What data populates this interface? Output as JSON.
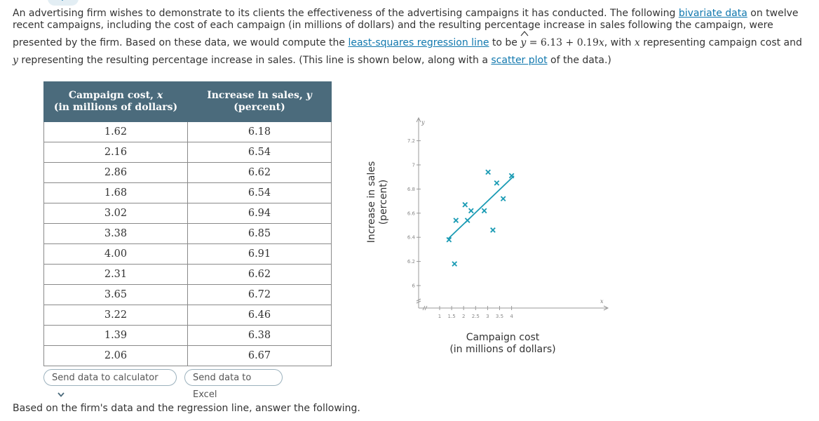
{
  "intro": {
    "line1_part1": "An advertising firm wishes to demonstrate to its clients the effectiveness of the advertising campaigns it has conducted. The following ",
    "link_bivariate": "bivariate data",
    "line1_part2": " on twelve",
    "line2": "recent campaigns, including the cost of each campaign (in millions of dollars) and the resulting percentage increase in sales following the campaign, were",
    "line3_part1": "presented by the firm. Based on these data, we would compute the ",
    "link_regression": "least-squares regression line",
    "line3_part2": " to be ",
    "eq_y": "y",
    "eq_equals": " = 6.13 + 0.19",
    "eq_x": "x",
    "line3_part3": ", with ",
    "x_var": "x",
    "line3_part4": " representing campaign cost and",
    "y_var": "y",
    "line4_part1": " representing the resulting percentage increase in sales. (This line is shown below, along with a ",
    "link_scatter": "scatter plot",
    "line4_part2": " of the data.)"
  },
  "table": {
    "col1_header_line1": "Campaign cost, ",
    "col1_header_var": "x",
    "col1_header_line2": "(in millions of dollars)",
    "col2_header_line1": "Increase in sales, ",
    "col2_header_var": "y",
    "col2_header_line2": "(percent)",
    "rows": [
      {
        "x": "1.62",
        "y": "6.18"
      },
      {
        "x": "2.16",
        "y": "6.54"
      },
      {
        "x": "2.86",
        "y": "6.62"
      },
      {
        "x": "1.68",
        "y": "6.54"
      },
      {
        "x": "3.02",
        "y": "6.94"
      },
      {
        "x": "3.38",
        "y": "6.85"
      },
      {
        "x": "4.00",
        "y": "6.91"
      },
      {
        "x": "2.31",
        "y": "6.62"
      },
      {
        "x": "3.65",
        "y": "6.72"
      },
      {
        "x": "3.22",
        "y": "6.46"
      },
      {
        "x": "1.39",
        "y": "6.38"
      },
      {
        "x": "2.06",
        "y": "6.67"
      }
    ]
  },
  "buttons": {
    "send_calculator": "Send data to calculator",
    "send_excel": "Send data to Excel"
  },
  "chart_data": {
    "type": "scatter",
    "xlabel_line1": "Campaign cost",
    "xlabel_line2": "(in millions of dollars)",
    "ylabel_line1": "Increase in sales",
    "ylabel_line2": "(percent)",
    "x_axis_var": "x",
    "y_axis_var": "y",
    "xlim": [
      0.7,
      4.5
    ],
    "ylim": [
      5.8,
      7.35
    ],
    "x_ticks": [
      1,
      1.5,
      2,
      2.5,
      3,
      3.5,
      4
    ],
    "x_tick_labels": [
      "1",
      "1.5",
      "2",
      "2.5",
      "3",
      "3.5",
      "4"
    ],
    "y_ticks": [
      6,
      6.2,
      6.4,
      6.6,
      6.8,
      7,
      7.2
    ],
    "y_tick_labels": [
      "6",
      "6.2",
      "6.4",
      "6.6",
      "6.8",
      "7",
      "7.2"
    ],
    "points": [
      {
        "x": 1.62,
        "y": 6.18
      },
      {
        "x": 2.16,
        "y": 6.54
      },
      {
        "x": 2.86,
        "y": 6.62
      },
      {
        "x": 1.68,
        "y": 6.54
      },
      {
        "x": 3.02,
        "y": 6.94
      },
      {
        "x": 3.38,
        "y": 6.85
      },
      {
        "x": 4.0,
        "y": 6.91
      },
      {
        "x": 2.31,
        "y": 6.62
      },
      {
        "x": 3.65,
        "y": 6.72
      },
      {
        "x": 3.22,
        "y": 6.46
      },
      {
        "x": 1.39,
        "y": 6.38
      },
      {
        "x": 2.06,
        "y": 6.67
      }
    ],
    "regression": {
      "intercept": 6.13,
      "slope": 0.19,
      "x_start": 1.35,
      "x_end": 4.1
    },
    "axis_break": true,
    "point_color": "#1a9bb4",
    "line_color": "#1a9bb4",
    "axis_color": "#999999"
  },
  "footer": "Based on the firm's data and the regression line, answer the following."
}
